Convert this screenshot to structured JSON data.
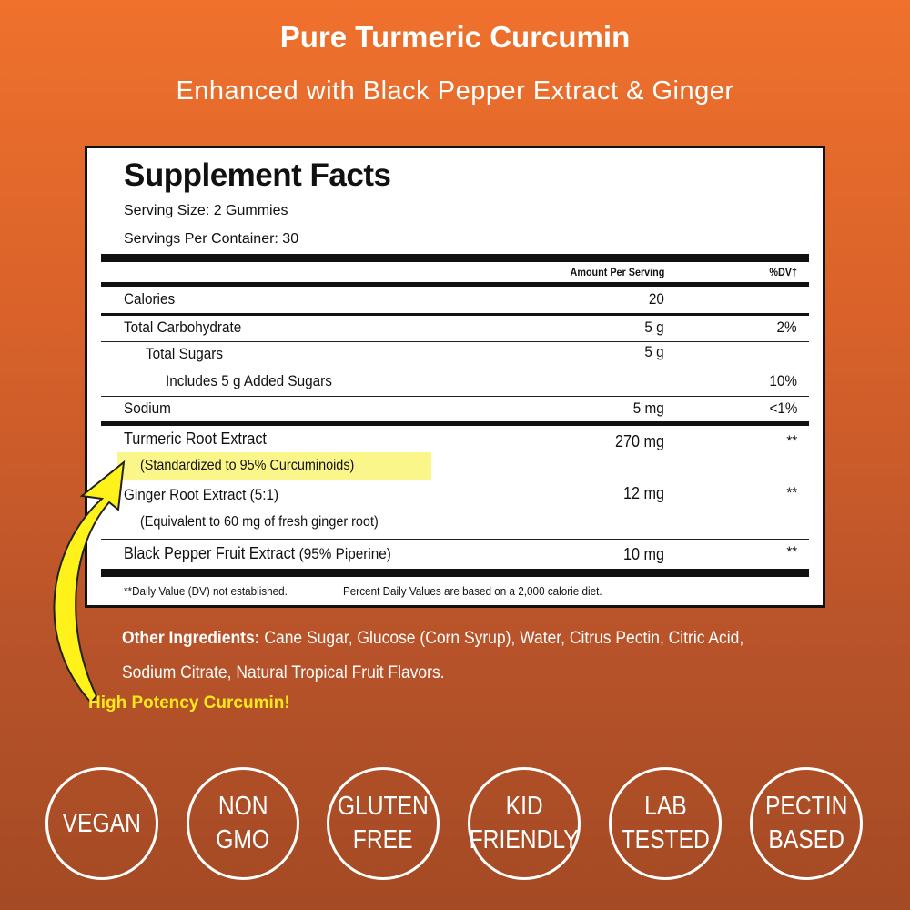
{
  "header": {
    "title": "Pure Turmeric Curcumin",
    "subtitle": "Enhanced with Black Pepper Extract & Ginger"
  },
  "facts": {
    "title": "Supplement Facts",
    "serving_size": "Serving Size:  2 Gummies",
    "servings_per_container": "Servings Per Container:  30",
    "col_amount": "Amount Per Serving",
    "col_dv": "%DV†",
    "rows": [
      {
        "name": "Calories",
        "amount": "20",
        "dv": ""
      },
      {
        "name": "Total Carbohydrate",
        "amount": "5 g",
        "dv": "2%"
      },
      {
        "name": "Total Sugars",
        "amount": "5 g",
        "dv": ""
      },
      {
        "name": "Includes 5 g Added Sugars",
        "amount": "",
        "dv": "10%"
      },
      {
        "name": "Sodium",
        "amount": "5 mg",
        "dv": "<1%"
      },
      {
        "name": "Turmeric Root Extract",
        "sub": "(Standardized to 95% Curcuminoids)",
        "amount": "270 mg",
        "dv": "**"
      },
      {
        "name": "Ginger Root Extract (5:1)",
        "sub": "(Equivalent to 60 mg of fresh ginger root)",
        "amount": "12 mg",
        "dv": "**"
      },
      {
        "name": "Black Pepper Fruit Extract",
        "name_suffix": "(95% Piperine)",
        "amount": "10 mg",
        "dv": "**"
      }
    ],
    "footnote_1": "**Daily Value (DV) not established.",
    "footnote_2": "Percent Daily Values are based on a 2,000 calorie diet."
  },
  "other_ingredients": {
    "label": "Other Ingredients:",
    "text": " Cane Sugar, Glucose (Corn Syrup), Water, Citrus Pectin, Citric Acid, Sodium Citrate, Natural Tropical Fruit Flavors."
  },
  "callout": "High Potency Curcumin!",
  "badges": [
    {
      "l1": "VEGAN",
      "l2": ""
    },
    {
      "l1": "NON",
      "l2": "GMO"
    },
    {
      "l1": "GLUTEN",
      "l2": "FREE"
    },
    {
      "l1": "KID",
      "l2": "FRIENDLY"
    },
    {
      "l1": "LAB",
      "l2": "TESTED"
    },
    {
      "l1": "PECTIN",
      "l2": "BASED"
    }
  ],
  "colors": {
    "background_top": "#ef712c",
    "background_bottom": "#a44a24",
    "highlight": "#fbf68a",
    "callout": "#ffe81c"
  }
}
